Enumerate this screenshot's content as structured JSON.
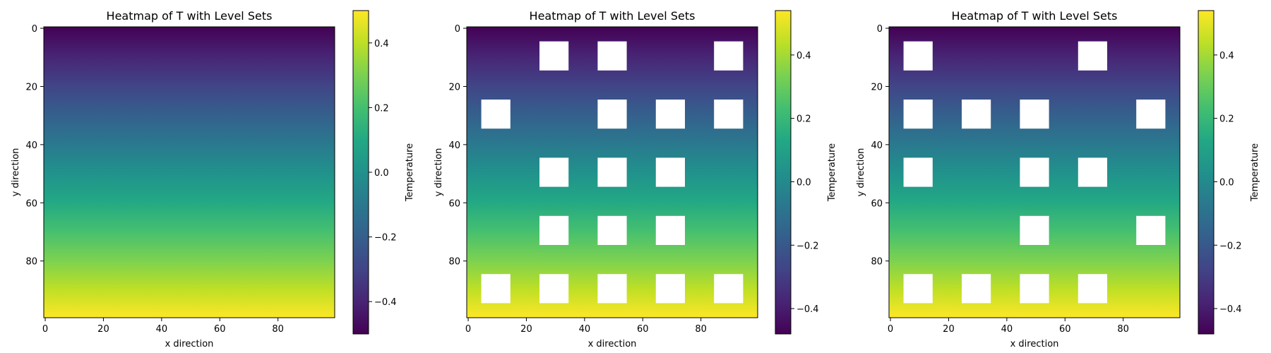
{
  "chart_data": [
    {
      "type": "heatmap",
      "title": "Heatmap of T with Level Sets",
      "xlabel": "x direction",
      "ylabel": "y direction",
      "colorbar_label": "Temperature",
      "colormap": "viridis",
      "grid_size": [
        100,
        100
      ],
      "xlim": [
        0,
        100
      ],
      "ylim": [
        100,
        0
      ],
      "x_ticks": [
        0,
        20,
        40,
        60,
        80
      ],
      "y_ticks": [
        0,
        20,
        40,
        60,
        80
      ],
      "value_range": [
        -0.5,
        0.5
      ],
      "colorbar_ticks": [
        {
          "value": 0.4,
          "label": "0.4"
        },
        {
          "value": 0.2,
          "label": "0.2"
        },
        {
          "value": 0.0,
          "label": "0.0"
        },
        {
          "value": -0.2,
          "label": "−0.2"
        },
        {
          "value": -0.4,
          "label": "−0.4"
        }
      ],
      "field": "T increases linearly from about -0.5 at y=0 to about 0.5 at y=100",
      "obstacles": []
    },
    {
      "type": "heatmap",
      "title": "Heatmap of T with Level Sets",
      "xlabel": "x direction",
      "ylabel": "y direction",
      "colorbar_label": "Temperature",
      "colormap": "viridis",
      "grid_size": [
        100,
        100
      ],
      "xlim": [
        0,
        100
      ],
      "ylim": [
        100,
        0
      ],
      "x_ticks": [
        0,
        20,
        40,
        60,
        80
      ],
      "y_ticks": [
        0,
        20,
        40,
        60,
        80
      ],
      "value_range": [
        -0.48,
        0.54
      ],
      "colorbar_ticks": [
        {
          "value": 0.4,
          "label": "0.4"
        },
        {
          "value": 0.2,
          "label": "0.2"
        },
        {
          "value": 0.0,
          "label": "0.0"
        },
        {
          "value": -0.2,
          "label": "−0.2"
        },
        {
          "value": -0.4,
          "label": "−0.4"
        }
      ],
      "obstacle_size": 10,
      "obstacles": [
        [
          25,
          5
        ],
        [
          45,
          5
        ],
        [
          85,
          5
        ],
        [
          5,
          25
        ],
        [
          45,
          25
        ],
        [
          65,
          25
        ],
        [
          85,
          25
        ],
        [
          25,
          45
        ],
        [
          45,
          45
        ],
        [
          65,
          45
        ],
        [
          25,
          65
        ],
        [
          45,
          65
        ],
        [
          65,
          65
        ],
        [
          5,
          85
        ],
        [
          25,
          85
        ],
        [
          45,
          85
        ],
        [
          65,
          85
        ],
        [
          85,
          85
        ]
      ]
    },
    {
      "type": "heatmap",
      "title": "Heatmap of T with Level Sets",
      "xlabel": "x direction",
      "ylabel": "y direction",
      "colorbar_label": "Temperature",
      "colormap": "viridis",
      "grid_size": [
        100,
        100
      ],
      "xlim": [
        0,
        100
      ],
      "ylim": [
        100,
        0
      ],
      "x_ticks": [
        0,
        20,
        40,
        60,
        80
      ],
      "y_ticks": [
        0,
        20,
        40,
        60,
        80
      ],
      "value_range": [
        -0.48,
        0.54
      ],
      "colorbar_ticks": [
        {
          "value": 0.4,
          "label": "0.4"
        },
        {
          "value": 0.2,
          "label": "0.2"
        },
        {
          "value": 0.0,
          "label": "0.0"
        },
        {
          "value": -0.2,
          "label": "−0.2"
        },
        {
          "value": -0.4,
          "label": "−0.4"
        }
      ],
      "obstacle_size": 10,
      "obstacles": [
        [
          5,
          5
        ],
        [
          65,
          5
        ],
        [
          5,
          25
        ],
        [
          25,
          25
        ],
        [
          45,
          25
        ],
        [
          85,
          25
        ],
        [
          5,
          45
        ],
        [
          45,
          45
        ],
        [
          65,
          45
        ],
        [
          45,
          65
        ],
        [
          85,
          65
        ],
        [
          5,
          85
        ],
        [
          25,
          85
        ],
        [
          45,
          85
        ],
        [
          65,
          85
        ]
      ]
    }
  ]
}
